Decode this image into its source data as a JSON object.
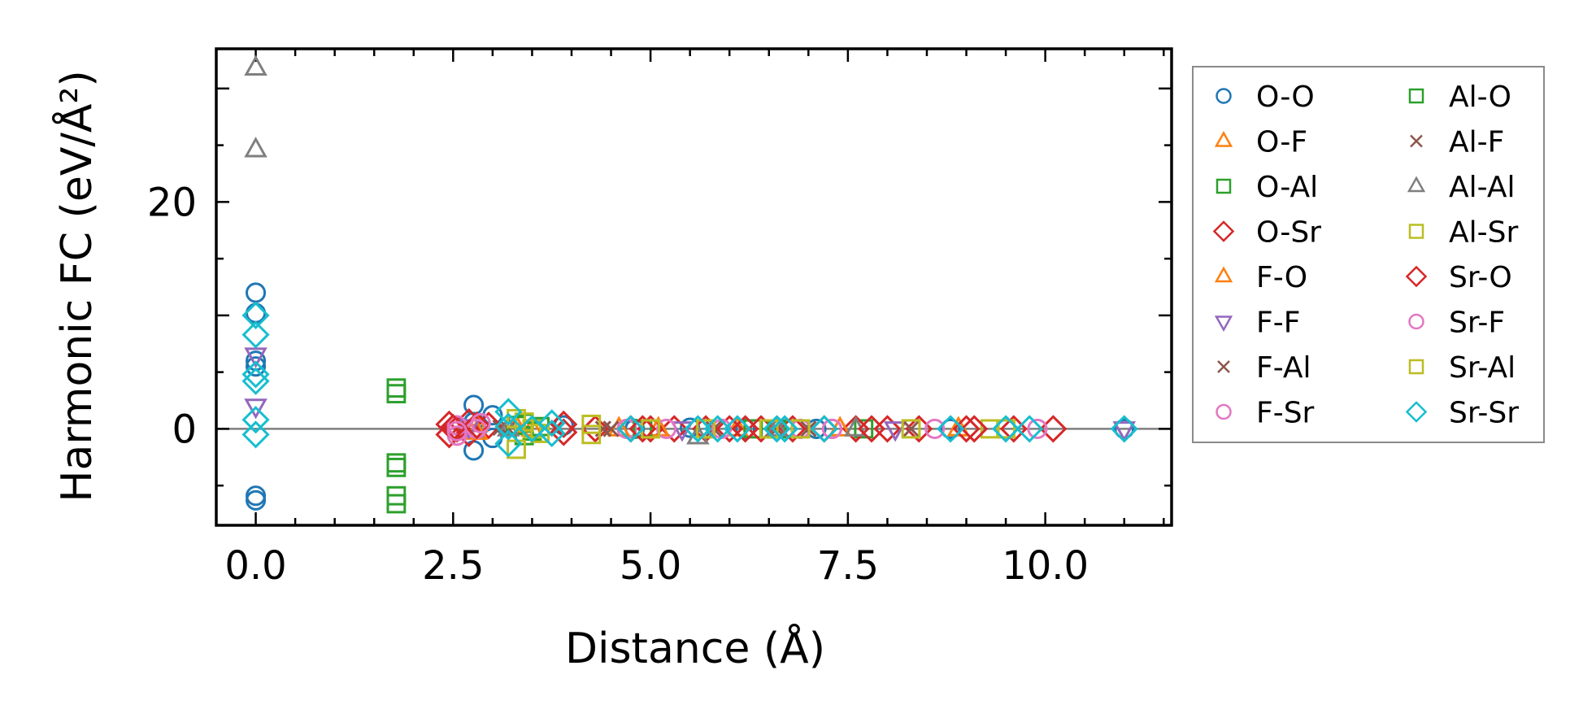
{
  "chart_data": {
    "type": "scatter",
    "title": "",
    "xlabel": "Distance (Å)",
    "ylabel": "Harmonic FC (eV/Å²)",
    "xlim": [
      -0.5,
      11.6
    ],
    "ylim": [
      -8.5,
      33.5
    ],
    "xticks": [
      0.0,
      2.5,
      5.0,
      7.5,
      10.0
    ],
    "xtick_labels": [
      "0.0",
      "2.5",
      "5.0",
      "7.5",
      "10.0"
    ],
    "yticks": [
      0,
      20
    ],
    "ytick_labels": [
      "0",
      "20"
    ],
    "x_minor_step": 0.5,
    "y_minor_step": 5,
    "hline": 0,
    "legend_position": "outside-right",
    "legend_columns": 2,
    "series": [
      {
        "name": "O-O",
        "marker": "circle",
        "color": "#1f77b4",
        "points": [
          [
            0,
            12.0
          ],
          [
            0,
            10.2
          ],
          [
            0,
            6.0
          ],
          [
            0,
            5.5
          ],
          [
            0,
            -5.9
          ],
          [
            0,
            -6.3
          ],
          [
            2.76,
            2.1
          ],
          [
            2.76,
            -1.9
          ],
          [
            2.76,
            0.6
          ],
          [
            3.0,
            1.2
          ],
          [
            3.0,
            -0.8
          ],
          [
            3.9,
            0.3
          ],
          [
            4.8,
            0.0
          ],
          [
            5.5,
            0.1
          ],
          [
            6.2,
            0.0
          ],
          [
            7.1,
            0.0
          ],
          [
            8.8,
            0.0
          ],
          [
            11.0,
            0.0
          ]
        ]
      },
      {
        "name": "O-F",
        "marker": "triangle-up",
        "color": "#ff7f0e",
        "points": [
          [
            2.8,
            0.4
          ],
          [
            3.5,
            0.0
          ],
          [
            4.6,
            0.0
          ],
          [
            6.1,
            0.0
          ],
          [
            8.9,
            0.0
          ]
        ]
      },
      {
        "name": "O-Al",
        "marker": "square",
        "color": "#2ca02c",
        "points": [
          [
            1.78,
            3.6
          ],
          [
            1.78,
            3.1
          ],
          [
            1.78,
            -3.0
          ],
          [
            1.78,
            -3.4
          ],
          [
            1.78,
            -5.9
          ],
          [
            1.78,
            -6.6
          ],
          [
            3.4,
            0.5
          ],
          [
            3.4,
            -0.6
          ],
          [
            3.6,
            0.2
          ],
          [
            4.9,
            0.0
          ],
          [
            6.3,
            0.0
          ],
          [
            7.7,
            0.0
          ]
        ]
      },
      {
        "name": "O-Sr",
        "marker": "diamond",
        "color": "#d62728",
        "points": [
          [
            2.45,
            0.4
          ],
          [
            2.45,
            -0.5
          ],
          [
            2.55,
            0.0
          ],
          [
            2.7,
            0.6
          ],
          [
            2.7,
            -0.4
          ],
          [
            2.95,
            0.3
          ],
          [
            3.9,
            0.4
          ],
          [
            4.3,
            0.0
          ],
          [
            4.75,
            0.0
          ],
          [
            5.0,
            0.0
          ],
          [
            5.3,
            0.0
          ],
          [
            5.7,
            0.0
          ],
          [
            6.0,
            0.0
          ],
          [
            6.4,
            0.0
          ],
          [
            6.8,
            0.0
          ],
          [
            7.2,
            0.0
          ],
          [
            7.6,
            0.0
          ],
          [
            8.0,
            0.0
          ],
          [
            8.4,
            0.0
          ],
          [
            9.0,
            0.0
          ],
          [
            9.6,
            0.0
          ],
          [
            10.1,
            0.0
          ]
        ]
      },
      {
        "name": "F-O",
        "marker": "triangle-up",
        "color": "#ff7f0e",
        "points": [
          [
            2.8,
            -0.3
          ],
          [
            3.3,
            0.2
          ],
          [
            5.1,
            0.0
          ],
          [
            7.4,
            0.0
          ]
        ]
      },
      {
        "name": "F-F",
        "marker": "triangle-down",
        "color": "#9467bd",
        "points": [
          [
            0,
            6.5
          ],
          [
            0,
            2.0
          ],
          [
            2.7,
            0.2
          ],
          [
            5.4,
            0.0
          ],
          [
            8.1,
            0.0
          ],
          [
            11.0,
            0.0
          ]
        ]
      },
      {
        "name": "F-Al",
        "marker": "x",
        "color": "#8c564b",
        "points": [
          [
            3.2,
            0.0
          ],
          [
            4.4,
            0.0
          ],
          [
            5.8,
            0.0
          ],
          [
            7.0,
            0.0
          ],
          [
            8.3,
            0.0
          ]
        ]
      },
      {
        "name": "F-Sr",
        "marker": "circle",
        "color": "#e377c2",
        "points": [
          [
            2.55,
            0.3
          ],
          [
            2.55,
            -0.6
          ],
          [
            2.8,
            0.0
          ],
          [
            4.7,
            0.0
          ],
          [
            5.9,
            0.0
          ],
          [
            6.9,
            0.0
          ],
          [
            7.3,
            0.0
          ],
          [
            8.6,
            0.0
          ],
          [
            9.5,
            0.0
          ]
        ]
      },
      {
        "name": "Al-O",
        "marker": "square",
        "color": "#2ca02c",
        "points": [
          [
            3.3,
            0.3
          ],
          [
            3.5,
            -0.2
          ],
          [
            4.9,
            0.0
          ],
          [
            6.6,
            0.0
          ]
        ]
      },
      {
        "name": "Al-F",
        "marker": "x",
        "color": "#8c564b",
        "points": [
          [
            3.1,
            0.1
          ],
          [
            4.5,
            0.0
          ],
          [
            6.6,
            0.0
          ]
        ]
      },
      {
        "name": "Al-Al",
        "marker": "triangle-up",
        "color": "#7f7f7f",
        "points": [
          [
            0,
            31.8
          ],
          [
            0,
            24.6
          ],
          [
            3.2,
            0.0
          ],
          [
            5.6,
            -0.7
          ],
          [
            6.6,
            0.0
          ],
          [
            7.6,
            0.0
          ]
        ]
      },
      {
        "name": "Al-Sr",
        "marker": "square",
        "color": "#bcbd22",
        "points": [
          [
            3.3,
            -1.8
          ],
          [
            3.3,
            0.9
          ],
          [
            3.5,
            0.0
          ],
          [
            4.25,
            0.4
          ],
          [
            4.25,
            -0.5
          ],
          [
            5.7,
            0.0
          ],
          [
            6.9,
            0.0
          ],
          [
            8.3,
            0.0
          ],
          [
            9.3,
            0.0
          ]
        ]
      },
      {
        "name": "Sr-O",
        "marker": "diamond",
        "color": "#d62728",
        "points": [
          [
            2.5,
            0.1
          ],
          [
            2.8,
            0.3
          ],
          [
            3.9,
            -0.3
          ],
          [
            4.9,
            0.0
          ],
          [
            6.2,
            0.0
          ],
          [
            7.8,
            0.0
          ],
          [
            9.1,
            0.0
          ]
        ]
      },
      {
        "name": "Sr-F",
        "marker": "circle",
        "color": "#e377c2",
        "points": [
          [
            2.55,
            -0.2
          ],
          [
            2.85,
            0.5
          ],
          [
            5.2,
            0.0
          ],
          [
            7.3,
            0.0
          ],
          [
            9.9,
            0.0
          ]
        ]
      },
      {
        "name": "Sr-Al",
        "marker": "square",
        "color": "#bcbd22",
        "points": [
          [
            3.4,
            0.6
          ],
          [
            3.6,
            -0.4
          ],
          [
            5.0,
            0.0
          ],
          [
            6.5,
            0.0
          ],
          [
            9.5,
            0.0
          ]
        ]
      },
      {
        "name": "Sr-Sr",
        "marker": "diamond",
        "color": "#17becf",
        "points": [
          [
            0,
            10.0
          ],
          [
            0,
            8.3
          ],
          [
            0,
            4.8
          ],
          [
            0,
            4.2
          ],
          [
            0,
            0.8
          ],
          [
            0,
            -0.5
          ],
          [
            3.2,
            1.5
          ],
          [
            3.2,
            -1.3
          ],
          [
            3.2,
            0.2
          ],
          [
            3.5,
            0.0
          ],
          [
            3.75,
            0.5
          ],
          [
            3.75,
            -0.4
          ],
          [
            4.75,
            0.0
          ],
          [
            5.6,
            0.0
          ],
          [
            5.85,
            0.0
          ],
          [
            6.1,
            0.0
          ],
          [
            6.6,
            0.0
          ],
          [
            6.7,
            0.0
          ],
          [
            7.2,
            0.0
          ],
          [
            8.8,
            0.0
          ],
          [
            9.5,
            0.0
          ],
          [
            9.8,
            0.0
          ],
          [
            11.0,
            0.0
          ]
        ]
      }
    ]
  }
}
